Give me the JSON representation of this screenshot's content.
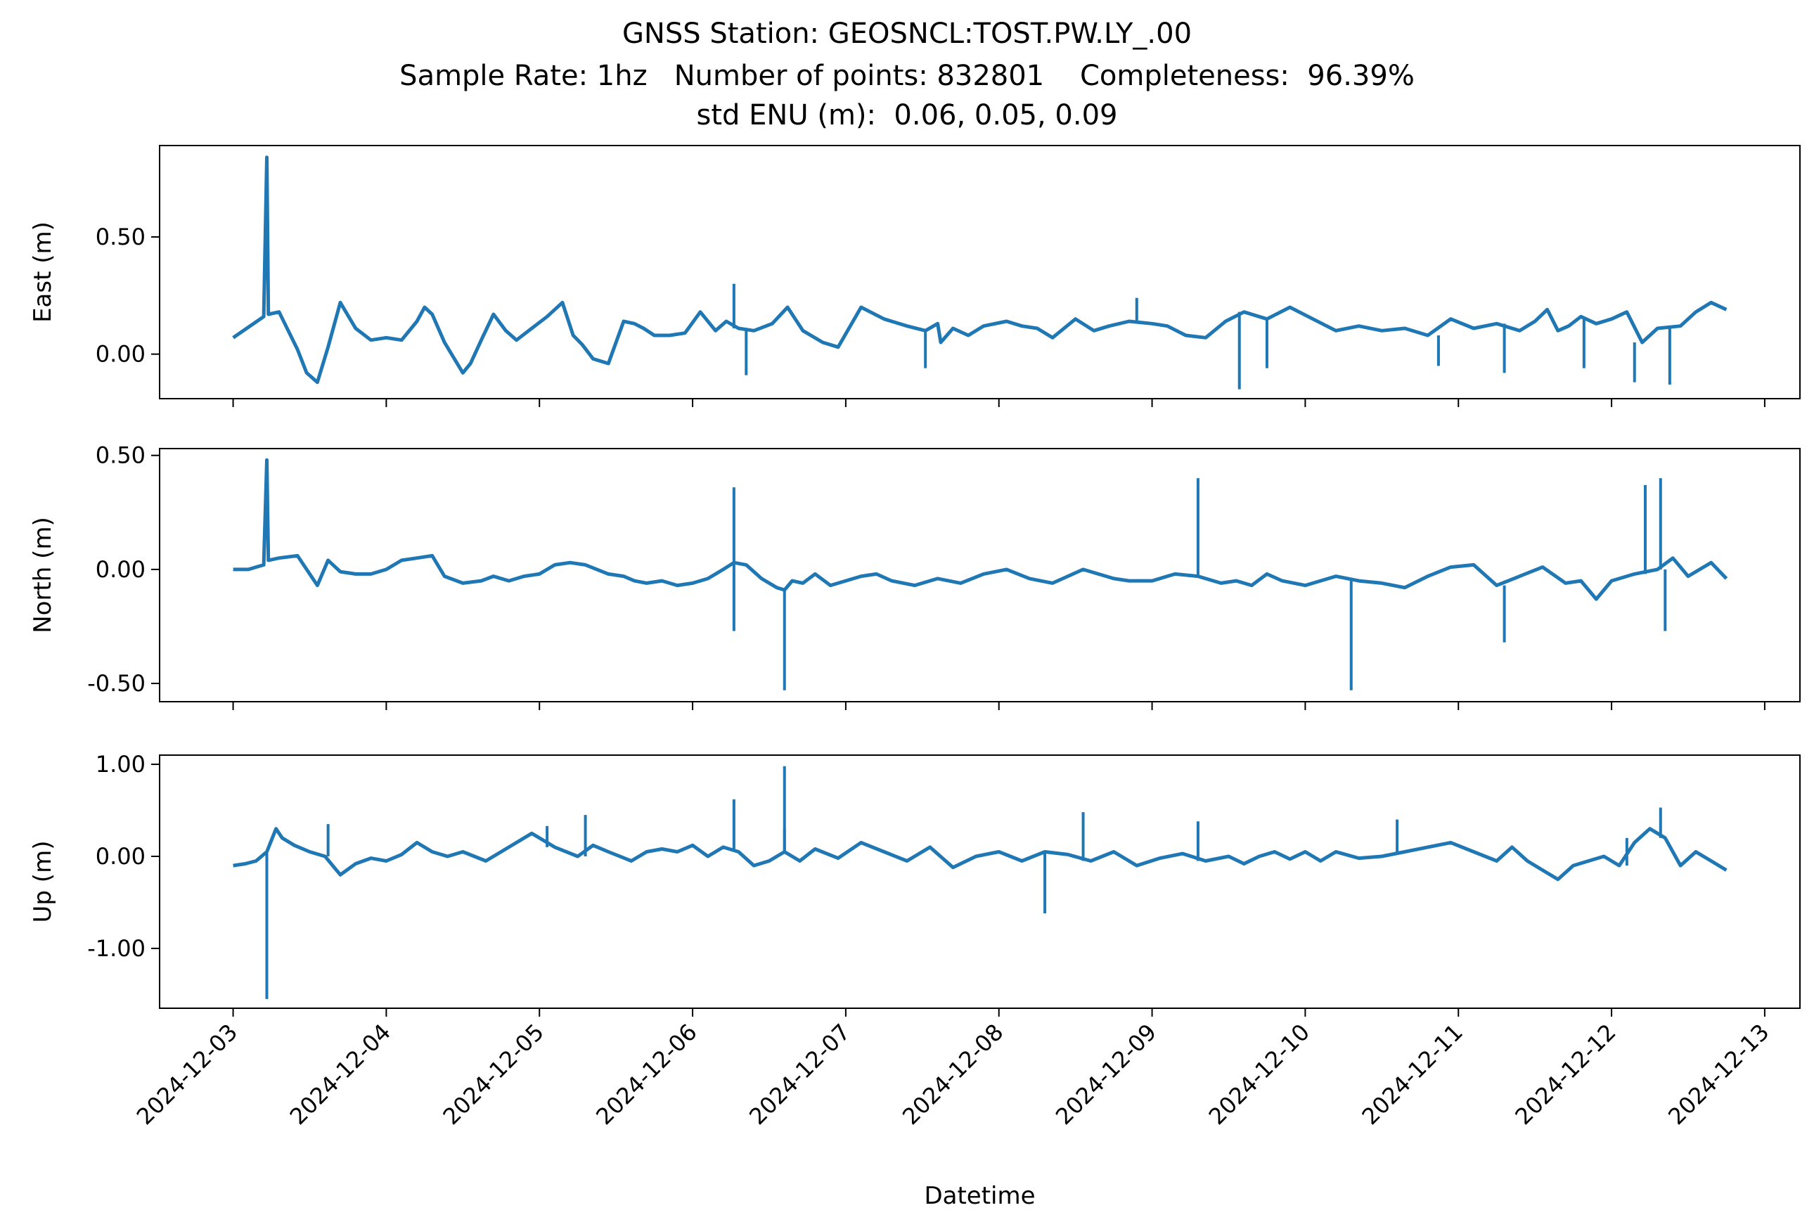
{
  "chart_data": {
    "type": "line",
    "title_lines": [
      "GNSS Station: GEOSNCL:TOST.PW.LY_.00",
      "Sample Rate: 1hz   Number of points: 832801    Completeness:  96.39%",
      "std ENU (m):  0.06, 0.05, 0.09"
    ],
    "xlabel": "Datetime",
    "x_tick_labels": [
      "2024-12-03",
      "2024-12-04",
      "2024-12-05",
      "2024-12-06",
      "2024-12-07",
      "2024-12-08",
      "2024-12-09",
      "2024-12-10",
      "2024-12-11",
      "2024-12-12",
      "2024-12-13"
    ],
    "xlim_days": [
      -0.48,
      10.23
    ],
    "line_color": "#1f77b4",
    "grid": false,
    "legend": "none",
    "panels": [
      {
        "ylabel": "East (m)",
        "ylim": [
          -0.19,
          0.89
        ],
        "yticks": [
          0.0,
          0.5
        ],
        "ytick_labels": [
          "0.00",
          "0.50"
        ],
        "x": [
          0.0,
          0.2,
          0.22,
          0.23,
          0.3,
          0.42,
          0.48,
          0.55,
          0.62,
          0.7,
          0.8,
          0.9,
          1.0,
          1.1,
          1.2,
          1.25,
          1.3,
          1.38,
          1.5,
          1.55,
          1.62,
          1.7,
          1.78,
          1.85,
          1.95,
          2.05,
          2.15,
          2.22,
          2.28,
          2.35,
          2.45,
          2.55,
          2.62,
          2.68,
          2.75,
          2.85,
          2.95,
          3.05,
          3.15,
          3.22,
          3.3,
          3.4,
          3.52,
          3.62,
          3.72,
          3.85,
          3.95,
          4.1,
          4.25,
          4.4,
          4.52,
          4.6,
          4.62,
          4.7,
          4.8,
          4.9,
          5.05,
          5.15,
          5.25,
          5.35,
          5.5,
          5.62,
          5.72,
          5.85,
          6.0,
          6.1,
          6.22,
          6.35,
          6.48,
          6.6,
          6.75,
          6.9,
          7.05,
          7.2,
          7.35,
          7.5,
          7.65,
          7.8,
          7.95,
          8.1,
          8.25,
          8.4,
          8.5,
          8.58,
          8.65,
          8.72,
          8.8,
          8.9,
          9.0,
          9.1,
          9.2,
          9.3,
          9.45,
          9.55,
          9.65,
          9.75
        ],
        "y": [
          0.07,
          0.16,
          0.84,
          0.17,
          0.18,
          0.02,
          -0.08,
          -0.12,
          0.03,
          0.22,
          0.11,
          0.06,
          0.07,
          0.06,
          0.14,
          0.2,
          0.17,
          0.05,
          -0.08,
          -0.04,
          0.06,
          0.17,
          0.1,
          0.06,
          0.11,
          0.16,
          0.22,
          0.08,
          0.04,
          -0.02,
          -0.04,
          0.14,
          0.13,
          0.11,
          0.08,
          0.08,
          0.09,
          0.18,
          0.1,
          0.14,
          0.11,
          0.1,
          0.13,
          0.2,
          0.1,
          0.05,
          0.03,
          0.2,
          0.15,
          0.12,
          0.1,
          0.13,
          0.05,
          0.11,
          0.08,
          0.12,
          0.14,
          0.12,
          0.11,
          0.07,
          0.15,
          0.1,
          0.12,
          0.14,
          0.13,
          0.12,
          0.08,
          0.07,
          0.14,
          0.18,
          0.15,
          0.2,
          0.15,
          0.1,
          0.12,
          0.1,
          0.11,
          0.08,
          0.15,
          0.11,
          0.13,
          0.1,
          0.14,
          0.19,
          0.1,
          0.12,
          0.16,
          0.13,
          0.15,
          0.18,
          0.05,
          0.11,
          0.12,
          0.18,
          0.22,
          0.19
        ],
        "spikes_x": [
          0.22,
          3.27,
          3.35,
          4.52,
          5.9,
          6.57,
          6.75,
          7.87,
          8.3,
          8.82,
          9.15,
          9.38
        ],
        "spikes_y": [
          0.84,
          0.3,
          -0.09,
          -0.06,
          0.24,
          -0.15,
          -0.06,
          -0.05,
          -0.08,
          -0.06,
          -0.12,
          -0.13
        ]
      },
      {
        "ylabel": "North (m)",
        "ylim": [
          -0.58,
          0.53
        ],
        "yticks": [
          0.5,
          0.0,
          -0.5
        ],
        "ytick_labels": [
          "0.50",
          "0.00",
          "-0.50"
        ],
        "x": [
          0.0,
          0.1,
          0.2,
          0.22,
          0.23,
          0.3,
          0.42,
          0.55,
          0.62,
          0.7,
          0.8,
          0.9,
          1.0,
          1.1,
          1.2,
          1.3,
          1.38,
          1.5,
          1.62,
          1.7,
          1.8,
          1.9,
          2.0,
          2.1,
          2.2,
          2.3,
          2.45,
          2.55,
          2.62,
          2.7,
          2.8,
          2.9,
          3.0,
          3.1,
          3.2,
          3.27,
          3.35,
          3.45,
          3.55,
          3.6,
          3.65,
          3.72,
          3.8,
          3.9,
          4.0,
          4.1,
          4.2,
          4.3,
          4.45,
          4.6,
          4.75,
          4.9,
          5.05,
          5.2,
          5.35,
          5.45,
          5.55,
          5.65,
          5.75,
          5.85,
          6.0,
          6.15,
          6.3,
          6.45,
          6.55,
          6.65,
          6.75,
          6.85,
          7.0,
          7.2,
          7.35,
          7.5,
          7.65,
          7.8,
          7.95,
          8.1,
          8.25,
          8.4,
          8.55,
          8.7,
          8.8,
          8.9,
          9.0,
          9.15,
          9.3,
          9.4,
          9.5,
          9.65,
          9.75
        ],
        "y": [
          0.0,
          0.0,
          0.02,
          0.48,
          0.04,
          0.05,
          0.06,
          -0.07,
          0.04,
          -0.01,
          -0.02,
          -0.02,
          0.0,
          0.04,
          0.05,
          0.06,
          -0.03,
          -0.06,
          -0.05,
          -0.03,
          -0.05,
          -0.03,
          -0.02,
          0.02,
          0.03,
          0.02,
          -0.02,
          -0.03,
          -0.05,
          -0.06,
          -0.05,
          -0.07,
          -0.06,
          -0.04,
          0.0,
          0.03,
          0.02,
          -0.04,
          -0.08,
          -0.09,
          -0.05,
          -0.06,
          -0.02,
          -0.07,
          -0.05,
          -0.03,
          -0.02,
          -0.05,
          -0.07,
          -0.04,
          -0.06,
          -0.02,
          0.0,
          -0.04,
          -0.06,
          -0.03,
          0.0,
          -0.02,
          -0.04,
          -0.05,
          -0.05,
          -0.02,
          -0.03,
          -0.06,
          -0.05,
          -0.07,
          -0.02,
          -0.05,
          -0.07,
          -0.03,
          -0.05,
          -0.06,
          -0.08,
          -0.03,
          0.01,
          0.02,
          -0.07,
          -0.03,
          0.01,
          -0.06,
          -0.05,
          -0.13,
          -0.05,
          -0.02,
          0.0,
          0.05,
          -0.03,
          0.03,
          -0.04
        ],
        "spikes_x": [
          0.22,
          3.27,
          3.27,
          3.6,
          6.3,
          7.3,
          8.3,
          9.22,
          9.32,
          9.35
        ],
        "spikes_y": [
          0.48,
          0.36,
          -0.27,
          -0.53,
          0.4,
          -0.53,
          -0.32,
          0.37,
          0.4,
          -0.27
        ]
      },
      {
        "ylabel": "Up (m)",
        "ylim": [
          -1.65,
          1.1
        ],
        "yticks": [
          1.0,
          0.0,
          -1.0
        ],
        "ytick_labels": [
          "1.00",
          "0.00",
          "-1.00"
        ],
        "x": [
          0.0,
          0.08,
          0.15,
          0.22,
          0.28,
          0.32,
          0.4,
          0.5,
          0.6,
          0.7,
          0.8,
          0.9,
          1.0,
          1.1,
          1.2,
          1.3,
          1.4,
          1.5,
          1.65,
          1.8,
          1.95,
          2.1,
          2.25,
          2.35,
          2.45,
          2.6,
          2.7,
          2.8,
          2.9,
          3.0,
          3.1,
          3.2,
          3.3,
          3.4,
          3.5,
          3.6,
          3.7,
          3.8,
          3.95,
          4.1,
          4.25,
          4.4,
          4.55,
          4.7,
          4.85,
          5.0,
          5.15,
          5.3,
          5.45,
          5.6,
          5.75,
          5.9,
          6.05,
          6.2,
          6.35,
          6.5,
          6.6,
          6.7,
          6.8,
          6.9,
          7.0,
          7.1,
          7.2,
          7.35,
          7.5,
          7.65,
          7.8,
          7.95,
          8.1,
          8.25,
          8.35,
          8.45,
          8.55,
          8.65,
          8.75,
          8.85,
          8.95,
          9.05,
          9.15,
          9.25,
          9.35,
          9.45,
          9.55,
          9.65,
          9.75
        ],
        "y": [
          -0.1,
          -0.08,
          -0.05,
          0.05,
          0.3,
          0.2,
          0.12,
          0.05,
          0.0,
          -0.2,
          -0.08,
          -0.02,
          -0.05,
          0.02,
          0.15,
          0.05,
          0.0,
          0.05,
          -0.05,
          0.1,
          0.25,
          0.1,
          0.0,
          0.12,
          0.05,
          -0.05,
          0.05,
          0.08,
          0.05,
          0.12,
          0.0,
          0.1,
          0.05,
          -0.1,
          -0.05,
          0.05,
          -0.05,
          0.08,
          -0.02,
          0.15,
          0.05,
          -0.05,
          0.1,
          -0.12,
          0.0,
          0.05,
          -0.05,
          0.05,
          0.02,
          -0.05,
          0.05,
          -0.1,
          -0.02,
          0.03,
          -0.05,
          0.0,
          -0.08,
          0.0,
          0.05,
          -0.03,
          0.05,
          -0.05,
          0.05,
          -0.02,
          0.0,
          0.05,
          0.1,
          0.15,
          0.05,
          -0.05,
          0.1,
          -0.05,
          -0.15,
          -0.25,
          -0.1,
          -0.05,
          0.0,
          -0.1,
          0.15,
          0.3,
          0.2,
          -0.1,
          0.05,
          -0.05,
          -0.15
        ],
        "spikes_x": [
          0.22,
          0.62,
          2.05,
          2.3,
          3.27,
          3.6,
          3.6,
          5.3,
          5.55,
          6.3,
          7.6,
          9.1,
          9.32
        ],
        "spikes_y": [
          -1.55,
          0.35,
          0.33,
          0.45,
          0.62,
          0.98,
          0.3,
          -0.62,
          0.48,
          0.38,
          0.4,
          0.2,
          0.53
        ]
      }
    ]
  }
}
